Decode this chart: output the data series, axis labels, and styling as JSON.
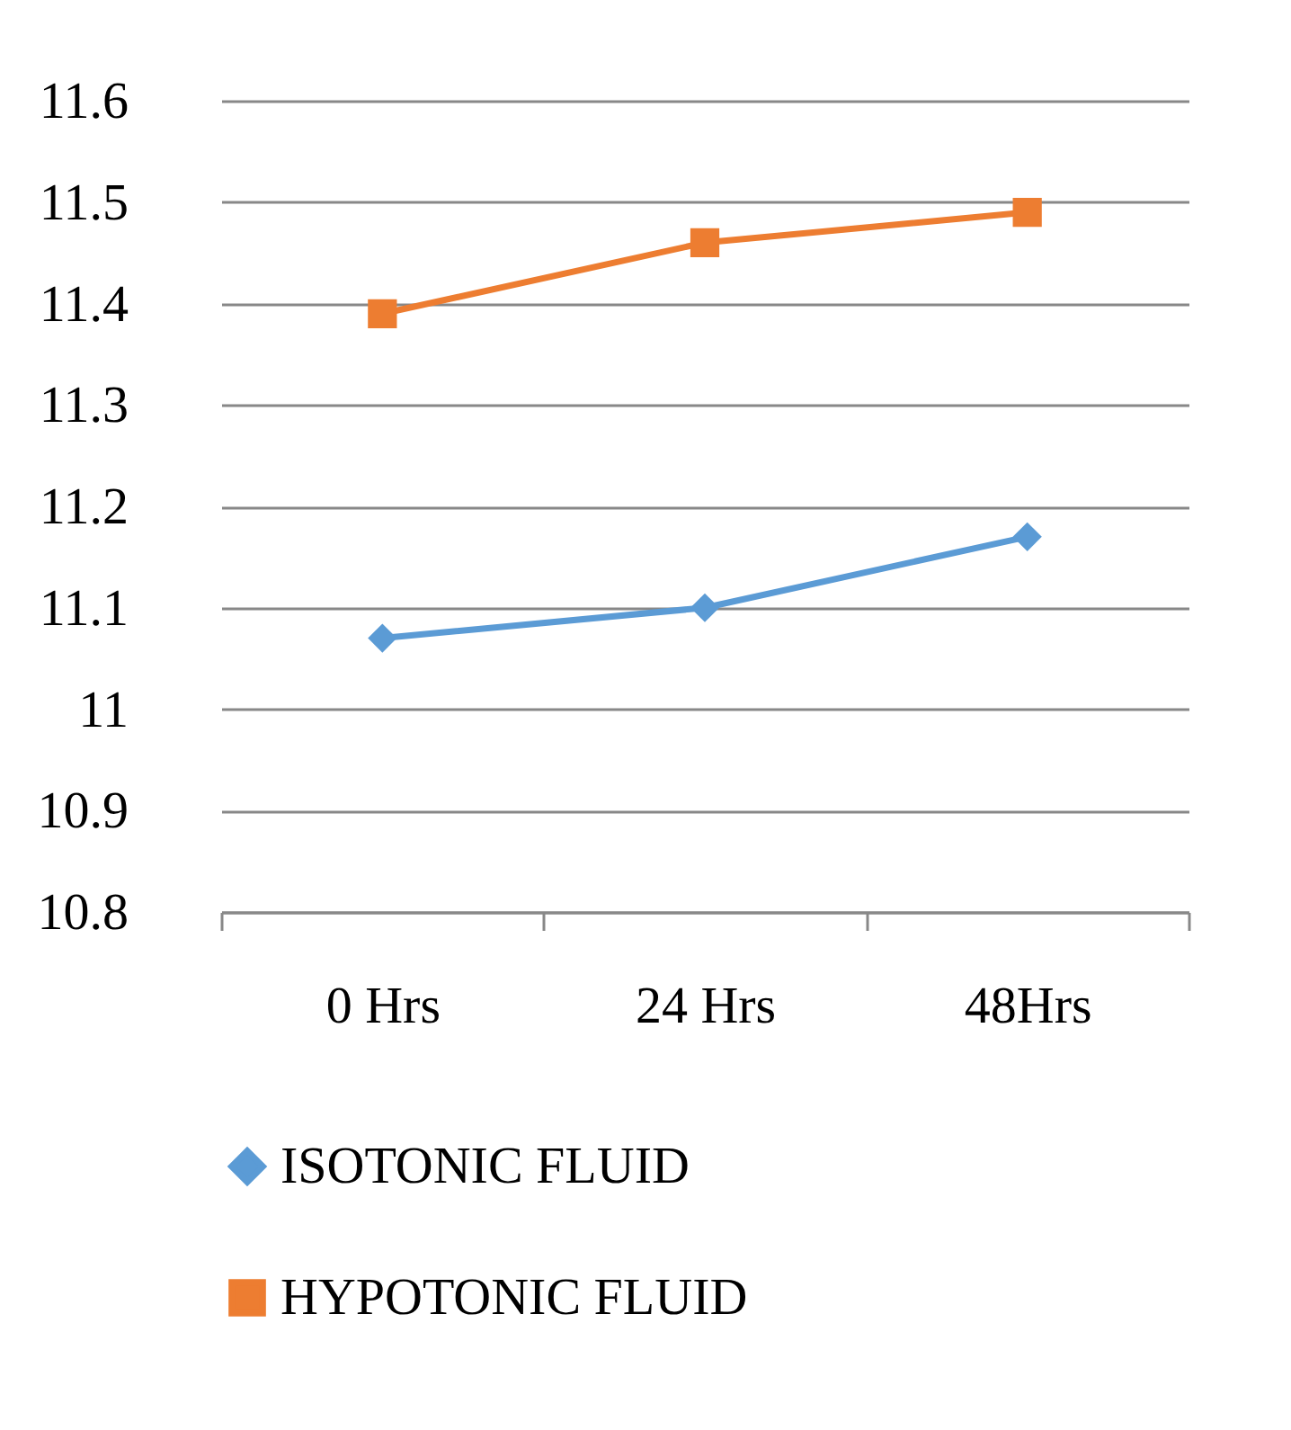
{
  "chart_data": {
    "type": "line",
    "categories": [
      "0 Hrs",
      "24 Hrs",
      "48Hrs"
    ],
    "series": [
      {
        "name": "ISOTONIC FLUID",
        "color": "#5b9bd5",
        "marker": "diamond",
        "values": [
          11.07,
          11.1,
          11.17
        ]
      },
      {
        "name": "HYPOTONIC FLUID",
        "color": "#ed7d31",
        "marker": "square",
        "values": [
          11.39,
          11.46,
          11.49
        ]
      }
    ],
    "ylim": [
      10.8,
      11.6
    ],
    "yticks": [
      10.8,
      10.9,
      11,
      11.1,
      11.2,
      11.3,
      11.4,
      11.5,
      11.6
    ],
    "grid": "y",
    "legend": "bottom",
    "line_style": "solid"
  }
}
